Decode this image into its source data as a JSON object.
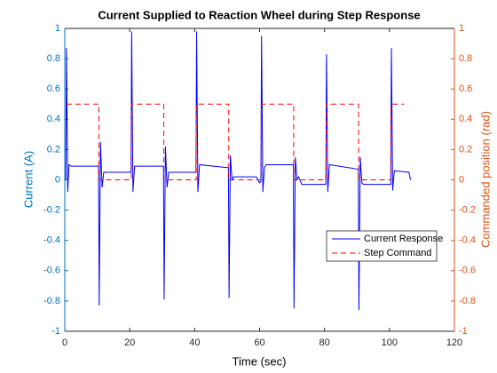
{
  "chart_data": {
    "type": "line",
    "title": "Current Supplied to Reaction Wheel during Step Response",
    "xlabel": "Time (sec)",
    "ylabel": "Current (A)",
    "y2label": "Commanded position (rad)",
    "xlim": [
      0,
      120
    ],
    "xticks": [
      0,
      20,
      40,
      60,
      80,
      100,
      120
    ],
    "ylim": [
      -1,
      1
    ],
    "yticks": [
      -1,
      -0.8,
      -0.6,
      -0.4,
      -0.2,
      0,
      0.2,
      0.4,
      0.6,
      0.8,
      1
    ],
    "y2lim": [
      -1,
      1
    ],
    "y2ticks": [
      -1,
      -0.8,
      -0.6,
      -0.4,
      -0.2,
      0,
      0.2,
      0.4,
      0.6,
      0.8,
      1
    ],
    "ycolor": "#0072bd",
    "y2color": "#d95319",
    "legend": "southeast",
    "series": [
      {
        "name": "Current Response",
        "color": "#0000ff",
        "dash": false,
        "x": [
          0.3,
          0.5,
          0.9,
          1.3,
          2,
          10.4,
          10.6,
          11,
          11.5,
          12,
          20.4,
          20.6,
          21,
          21.5,
          30.4,
          30.6,
          31,
          31.5,
          32,
          40.4,
          40.6,
          41,
          41.5,
          50.4,
          50.6,
          51,
          51.5,
          52,
          59,
          60,
          60.4,
          60.6,
          61,
          61.5,
          62,
          70.4,
          70.6,
          71,
          71.5,
          72,
          73,
          80.4,
          80.6,
          81,
          81.5,
          90.4,
          90.6,
          91,
          91.5,
          92,
          100.4,
          100.6,
          101,
          101.5,
          106,
          106.5
        ],
        "values": [
          0,
          0.87,
          -0.08,
          0.1,
          0.09,
          0.09,
          -0.83,
          0.25,
          -0.05,
          0.05,
          0.05,
          0.98,
          -0.08,
          0.09,
          0.09,
          -0.79,
          0.22,
          -0.05,
          0.05,
          0.05,
          0.98,
          -0.08,
          0.1,
          0.08,
          -0.78,
          0.16,
          0,
          0.02,
          0.02,
          -0.02,
          -0.01,
          0.95,
          -0.08,
          0.08,
          0.1,
          0.1,
          -0.85,
          0.15,
          0,
          0.02,
          -0.03,
          -0.03,
          0.83,
          -0.08,
          0.1,
          0.07,
          -0.86,
          0.15,
          -0.02,
          -0.03,
          -0.03,
          0.87,
          -0.07,
          0.06,
          0.05,
          0
        ]
      },
      {
        "name": "Step Command",
        "color": "#ff0000",
        "dash": true,
        "axis": "y2",
        "x": [
          0.5,
          10.5,
          10.5,
          20.5,
          20.5,
          30.5,
          30.5,
          40.5,
          40.5,
          50.5,
          50.5,
          60.5,
          60.5,
          70.5,
          70.5,
          80.5,
          80.5,
          90.5,
          90.5,
          100.5,
          100.5,
          104.5
        ],
        "values": [
          0.5,
          0.5,
          0,
          0,
          0.5,
          0.5,
          0,
          0,
          0.5,
          0.5,
          0,
          0,
          0.5,
          0.5,
          0,
          0,
          0.5,
          0.5,
          0,
          0,
          0.5,
          0.5
        ]
      }
    ]
  }
}
